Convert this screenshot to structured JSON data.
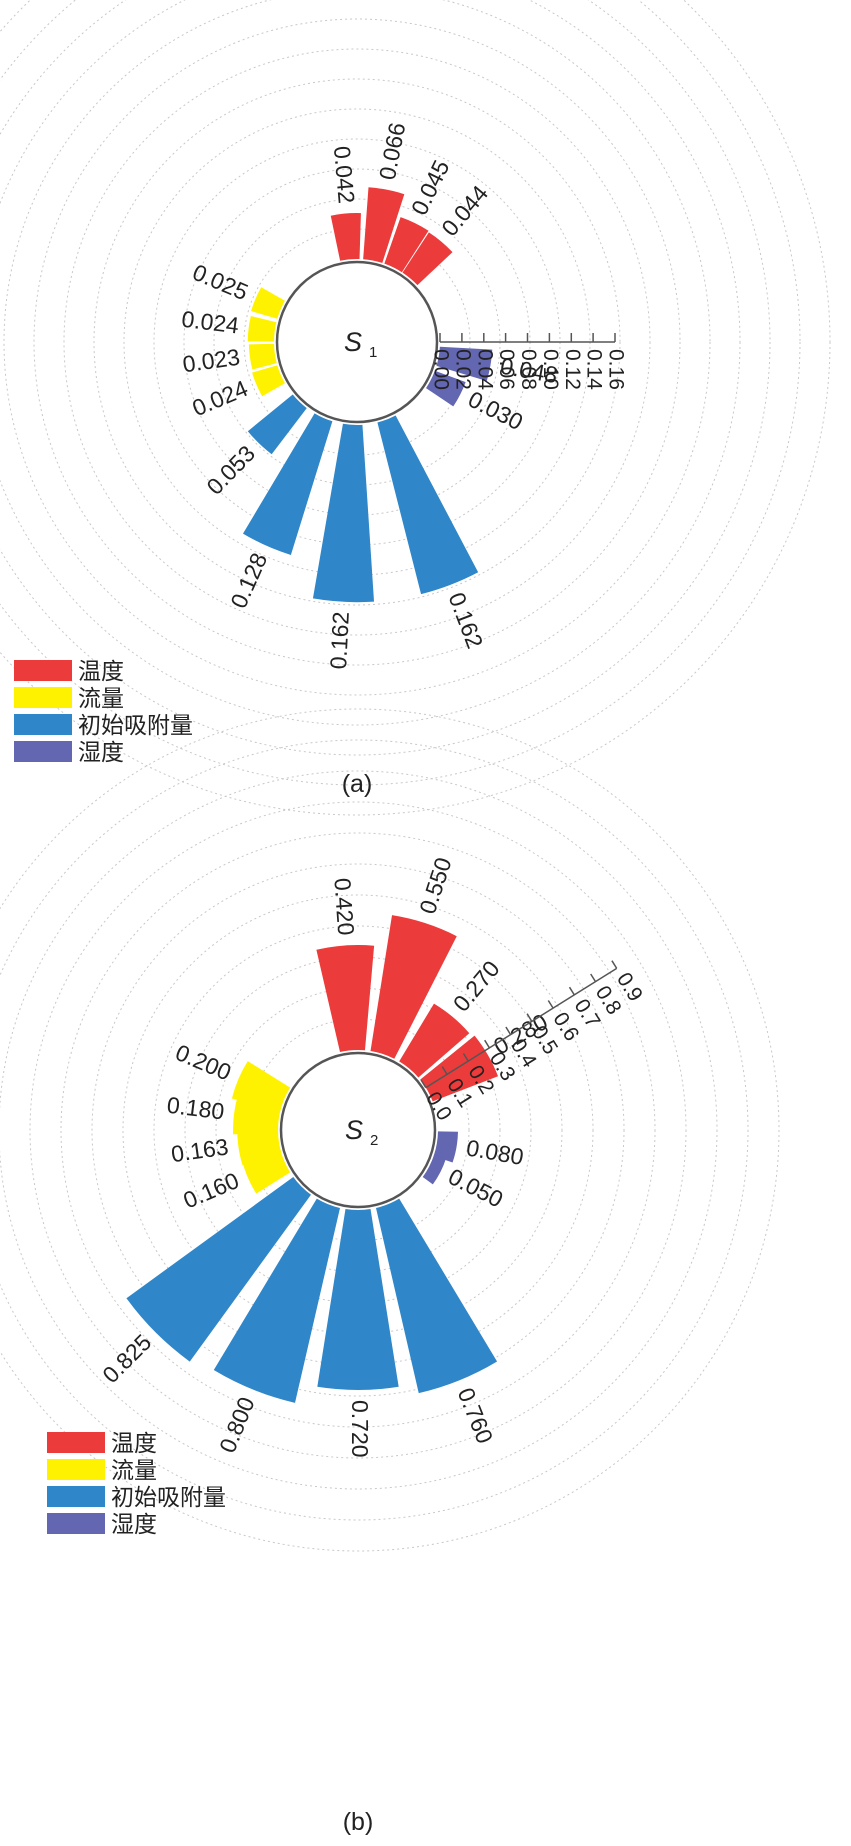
{
  "chart_data": [
    {
      "type": "radial-bar",
      "panel_label": "(a)",
      "center_label": "S",
      "center_sub": "1",
      "axis_ticks": [
        "0.00",
        "0.02",
        "0.04",
        "0.06",
        "0.08",
        "0.10",
        "0.12",
        "0.14",
        "0.16"
      ],
      "axis_max": 0.16,
      "series": [
        {
          "name": "温度",
          "color": "#EC3B3B",
          "values": [
            0.042,
            0.066,
            0.045,
            0.044
          ],
          "labels": [
            "0.042",
            "0.066",
            "0.045",
            "0.044"
          ]
        },
        {
          "name": "湿度",
          "color": "#6366B0",
          "values": [
            0.048,
            0.03
          ],
          "labels": [
            "0.048",
            "0.030"
          ]
        },
        {
          "name": "初始吸附量",
          "color": "#2F86C8",
          "values": [
            0.162,
            0.162,
            0.128,
            0.053
          ],
          "labels": [
            "0.162",
            "0.162",
            "0.128",
            "0.053"
          ]
        },
        {
          "name": "流量",
          "color": "#FFF200",
          "values": [
            0.024,
            0.023,
            0.024,
            0.025
          ],
          "labels": [
            "0.024",
            "0.023",
            "0.024",
            "0.025"
          ]
        }
      ],
      "legend": [
        "温度",
        "流量",
        "初始吸附量",
        "湿度"
      ]
    },
    {
      "type": "radial-bar",
      "panel_label": "(b)",
      "center_label": "S",
      "center_sub": "2",
      "axis_ticks": [
        "0.0",
        "0.1",
        "0.2",
        "0.3",
        "0.4",
        "0.5",
        "0.6",
        "0.7",
        "0.8",
        "0.9"
      ],
      "axis_max": 0.9,
      "series": [
        {
          "name": "温度",
          "color": "#EC3B3B",
          "values": [
            0.42,
            0.55,
            0.27,
            0.28
          ],
          "labels": [
            "0.420",
            "0.550",
            "0.270",
            "0.280"
          ]
        },
        {
          "name": "湿度",
          "color": "#6366B0",
          "values": [
            0.08,
            0.05
          ],
          "labels": [
            "0.080",
            "0.050"
          ]
        },
        {
          "name": "初始吸附量",
          "color": "#2F86C8",
          "values": [
            0.76,
            0.72,
            0.8,
            0.825
          ],
          "labels": [
            "0.760",
            "0.720",
            "0.800",
            "0.825"
          ]
        },
        {
          "name": "流量",
          "color": "#FFF200",
          "values": [
            0.16,
            0.163,
            0.18,
            0.2
          ],
          "labels": [
            "0.160",
            "0.163",
            "0.180",
            "0.200"
          ]
        }
      ],
      "legend": [
        "温度",
        "流量",
        "初始吸附量",
        "湿度"
      ]
    }
  ]
}
